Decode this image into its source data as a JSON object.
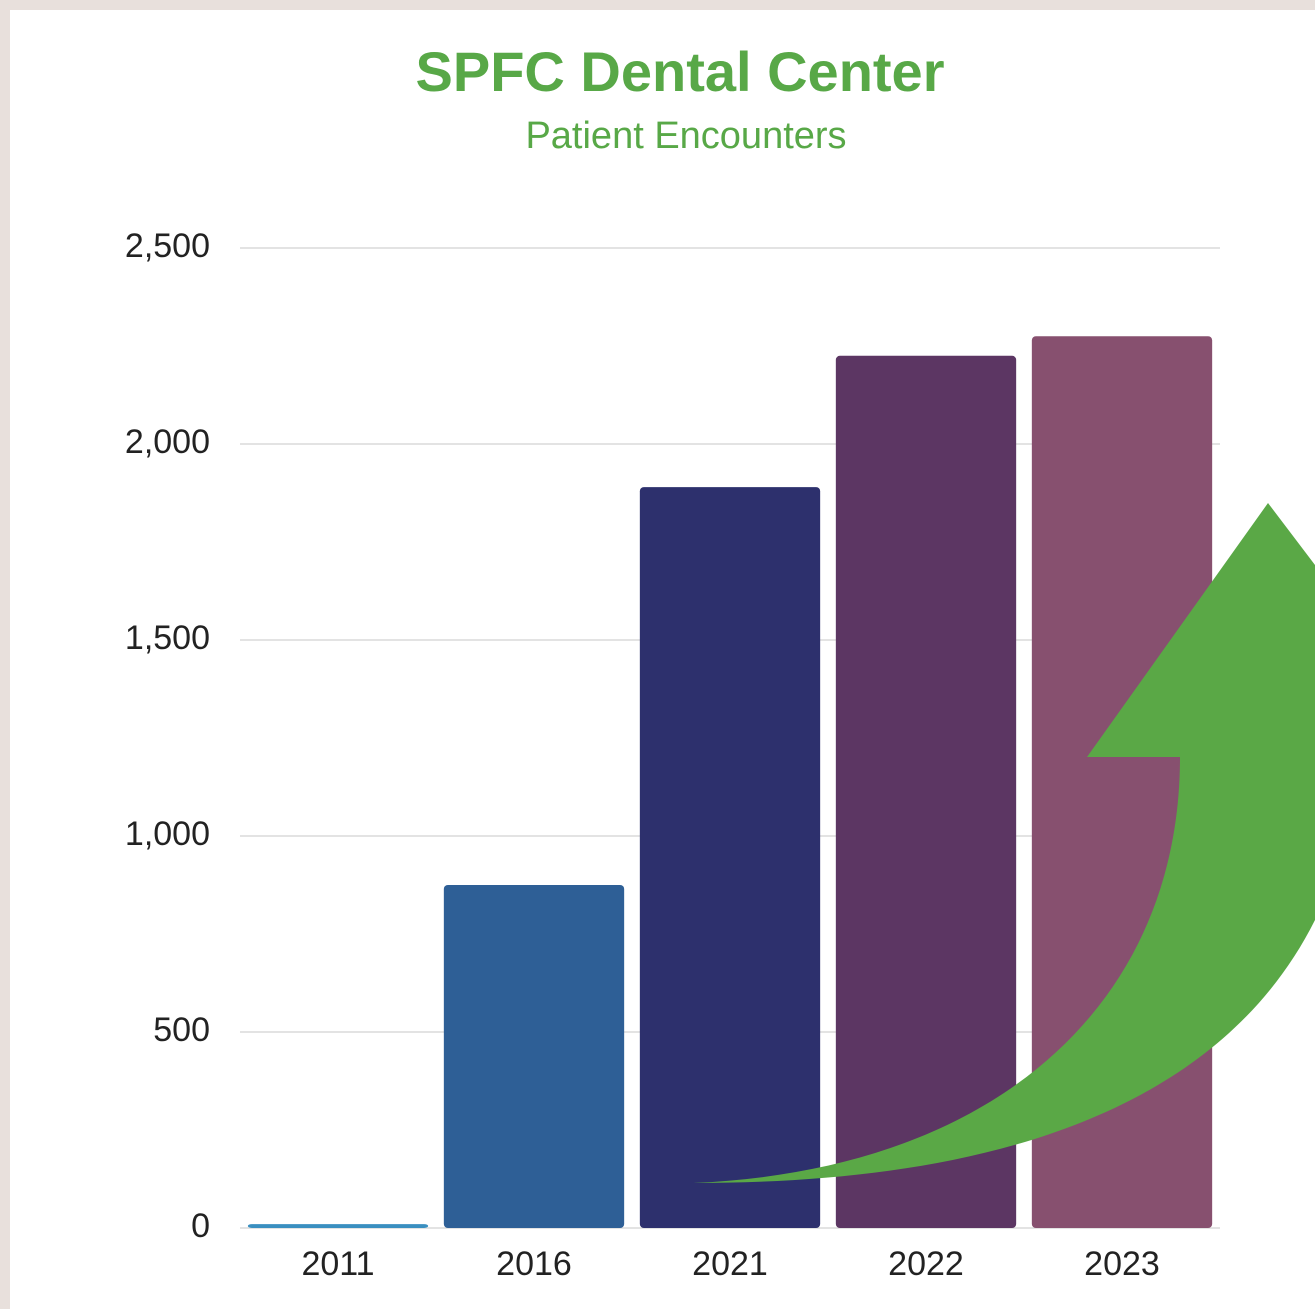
{
  "chart_data": {
    "type": "bar",
    "title": "SPFC Dental Center",
    "subtitle": "Patient Encounters",
    "categories": [
      "2011",
      "2016",
      "2021",
      "2022",
      "2023"
    ],
    "values": [
      10,
      875,
      1890,
      2225,
      2275
    ],
    "colors": [
      "#3a8fc0",
      "#2e5f96",
      "#2d306d",
      "#5c3663",
      "#87506f"
    ],
    "ylim": [
      0,
      2500
    ],
    "yticks": [
      0,
      500,
      {
        "value": 1000,
        "label": "1,000"
      },
      {
        "value": 1500,
        "label": "1,500"
      },
      {
        "value": 2000,
        "label": "2,000"
      },
      {
        "value": 2500,
        "label": "2,500"
      }
    ],
    "grid": true
  }
}
